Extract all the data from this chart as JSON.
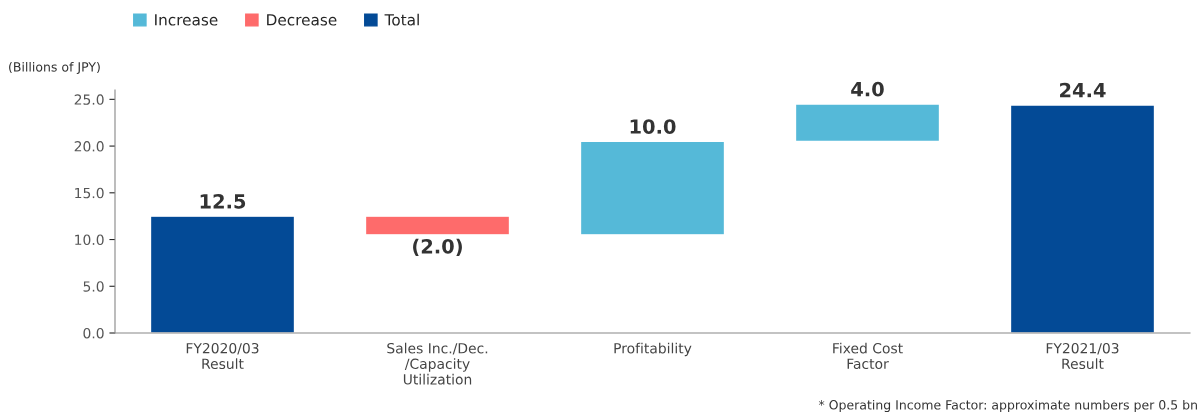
{
  "chart_data": {
    "type": "bar",
    "categories": [
      "FY2020/03\nResult",
      "Sales Inc./Dec.\n/Capacity\nUtilization",
      "Profitability",
      "Fixed Cost\nFactor",
      "FY2021/03\nResult"
    ],
    "series": [
      {
        "name": "Increase",
        "color": "#55b9d8",
        "base": [
          null,
          null,
          10.5,
          20.5,
          null
        ],
        "values": [
          null,
          null,
          10.0,
          4.0,
          null
        ],
        "value_labels": [
          null,
          null,
          "10.0",
          "4.0",
          null
        ]
      },
      {
        "name": "Decrease",
        "color": "#fe6b6b",
        "base": [
          null,
          12.5,
          null,
          null,
          null
        ],
        "values": [
          null,
          -2.0,
          null,
          null,
          null
        ],
        "value_labels": [
          null,
          "(2.0)",
          null,
          null,
          null
        ]
      },
      {
        "name": "Total",
        "color": "#034a96",
        "values": [
          12.5,
          null,
          null,
          null,
          24.4
        ],
        "value_labels": [
          "12.5",
          null,
          null,
          null,
          "24.4"
        ]
      }
    ],
    "ylabel": "(Billions of JPY)",
    "ylim": [
      0,
      26
    ],
    "yticks": [
      {
        "value": 0,
        "label": "0.0"
      },
      {
        "value": 5,
        "label": "5.0"
      },
      {
        "value": 10,
        "label": "10.0"
      },
      {
        "value": 15,
        "label": "15.0"
      },
      {
        "value": 20,
        "label": "20.0"
      },
      {
        "value": 25,
        "label": "25.0"
      }
    ],
    "legend": "top left",
    "annotations": [
      "* Operating Income Factor: approximate numbers per 0.5 bn"
    ]
  }
}
